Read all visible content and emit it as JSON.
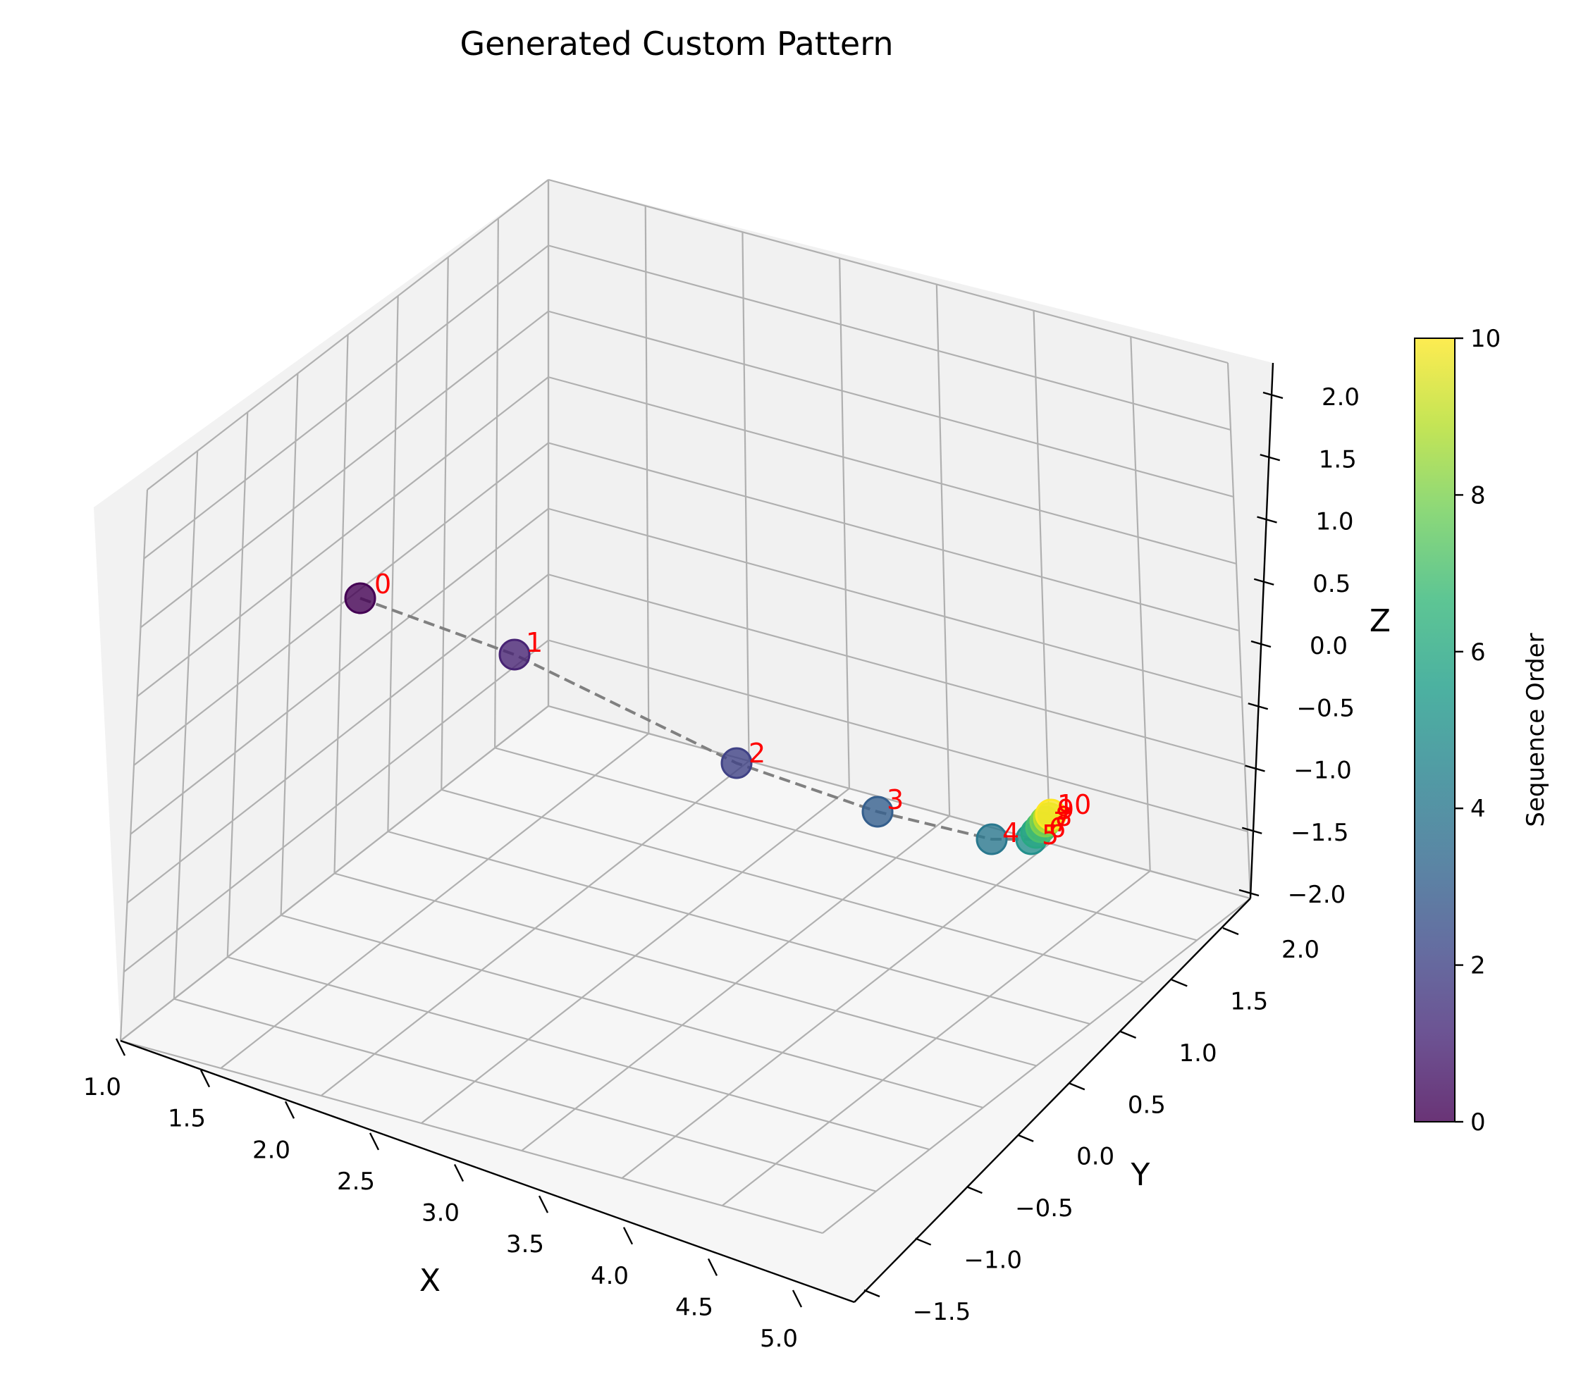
{
  "chart_data": {
    "type": "scatter",
    "projection": "3d",
    "title": "Generated Custom Pattern",
    "xlabel": "X",
    "ylabel": "Y",
    "zlabel": "Z",
    "xlim": [
      1.0,
      5.0
    ],
    "ylim": [
      -1.5,
      2.0
    ],
    "zlim": [
      -2.0,
      2.0
    ],
    "xticks": [
      "1.0",
      "1.5",
      "2.0",
      "2.5",
      "3.0",
      "3.5",
      "4.0",
      "4.5",
      "5.0"
    ],
    "yticks": [
      "−1.5",
      "−1.0",
      "−0.5",
      "0.0",
      "0.5",
      "1.0",
      "1.5",
      "2.0"
    ],
    "zticks": [
      "−2.0",
      "−1.5",
      "−1.0",
      "−0.5",
      "0.0",
      "0.5",
      "1.0",
      "1.5",
      "2.0"
    ],
    "grid": true,
    "point_labels": [
      "0",
      "1",
      "2",
      "3",
      "4",
      "5",
      "6",
      "7",
      "8",
      "9",
      "10"
    ],
    "point_label_color": "#ff0000",
    "sequence": [
      0,
      1,
      2,
      3,
      4,
      5,
      6,
      7,
      8,
      9,
      10
    ],
    "connector_style": "dashed",
    "connector_color": "#808080",
    "colormap": "viridis",
    "colorbar": {
      "label": "Sequence Order",
      "range": [
        0,
        10
      ],
      "ticks": [
        "0",
        "2",
        "4",
        "6",
        "8",
        "10"
      ]
    }
  }
}
